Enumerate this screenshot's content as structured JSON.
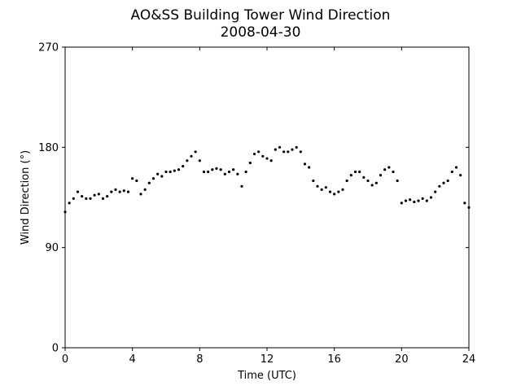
{
  "chart_data": {
    "type": "scatter",
    "title": "AO&SS Building Tower Wind Direction",
    "subtitle": "2008-04-30",
    "xlabel": "Time (UTC)",
    "ylabel": "Wind Direction (°)",
    "xlim": [
      0,
      24
    ],
    "ylim": [
      0,
      270
    ],
    "xticks": [
      0,
      4,
      8,
      12,
      16,
      20,
      24
    ],
    "yticks": [
      0,
      90,
      180,
      270
    ],
    "grid": false,
    "legend": "none",
    "marker_color": "#000000",
    "series": [
      {
        "x": [
          0.0,
          0.25,
          0.5,
          0.75,
          1.0,
          1.25,
          1.5,
          1.75,
          2.0,
          2.25,
          2.5,
          2.75,
          3.0,
          3.25,
          3.5,
          3.75,
          4.0,
          4.25,
          4.5,
          4.75,
          5.0,
          5.25,
          5.5,
          5.75,
          6.0,
          6.25,
          6.5,
          6.75,
          7.0,
          7.25,
          7.5,
          7.75,
          8.0,
          8.25,
          8.5,
          8.75,
          9.0,
          9.25,
          9.5,
          9.75,
          10.0,
          10.25,
          10.5,
          10.75,
          11.0,
          11.25,
          11.5,
          11.75,
          12.0,
          12.25,
          12.5,
          12.75,
          13.0,
          13.25,
          13.5,
          13.75,
          14.0,
          14.25,
          14.5,
          14.75,
          15.0,
          15.25,
          15.5,
          15.75,
          16.0,
          16.25,
          16.5,
          16.75,
          17.0,
          17.25,
          17.5,
          17.75,
          18.0,
          18.25,
          18.5,
          18.75,
          19.0,
          19.25,
          19.5,
          19.75,
          20.0,
          20.25,
          20.5,
          20.75,
          21.0,
          21.25,
          21.5,
          21.75,
          22.0,
          22.25,
          22.5,
          22.75,
          23.0,
          23.25,
          23.5,
          23.75,
          24.0
        ],
        "values": [
          122,
          130,
          134,
          140,
          136,
          134,
          134,
          137,
          138,
          134,
          136,
          140,
          142,
          140,
          141,
          140,
          152,
          150,
          138,
          142,
          148,
          152,
          156,
          154,
          158,
          158,
          159,
          160,
          163,
          168,
          172,
          176,
          168,
          158,
          158,
          160,
          161,
          160,
          156,
          158,
          160,
          156,
          145,
          158,
          166,
          174,
          176,
          172,
          170,
          168,
          178,
          180,
          176,
          176,
          178,
          180,
          176,
          165,
          162,
          150,
          145,
          142,
          144,
          140,
          138,
          140,
          142,
          150,
          155,
          158,
          158,
          153,
          150,
          146,
          148,
          155,
          160,
          162,
          158,
          150,
          130,
          132,
          133,
          131,
          132,
          134,
          132,
          135,
          140,
          145,
          148,
          150,
          158,
          162,
          155,
          130,
          126
        ]
      }
    ]
  }
}
